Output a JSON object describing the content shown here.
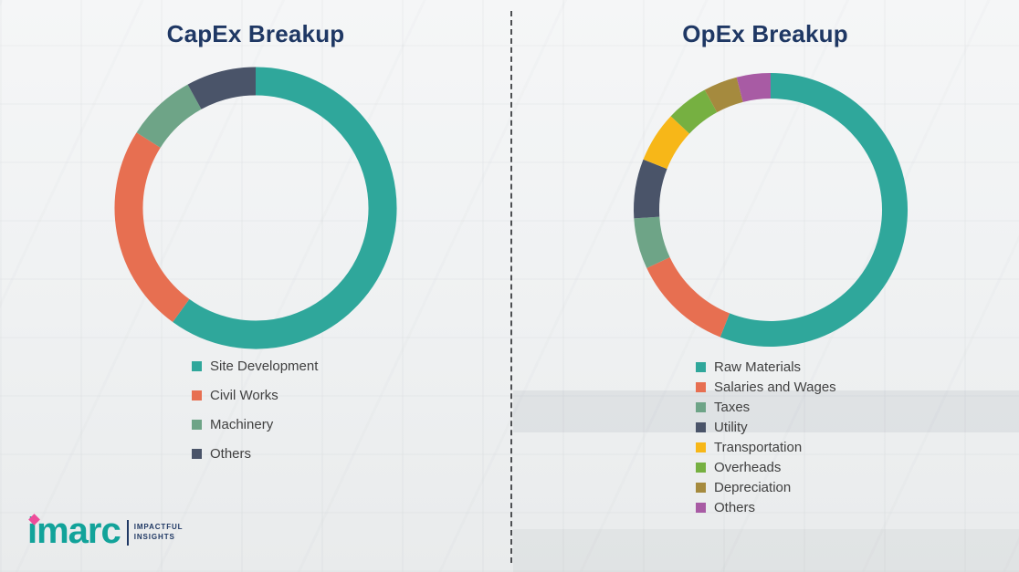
{
  "chart_data": [
    {
      "type": "pie",
      "subtype": "donut",
      "title": "CapEx Breakup",
      "categories": [
        "Site Development",
        "Civil Works",
        "Machinery",
        "Others"
      ],
      "values": [
        60,
        24,
        8,
        8
      ],
      "colors": [
        "#2FA79B",
        "#E76F51",
        "#6EA487",
        "#4A5469"
      ],
      "legend_position": "below-chart-left"
    },
    {
      "type": "pie",
      "subtype": "donut",
      "title": "OpEx Breakup",
      "categories": [
        "Raw Materials",
        "Salaries and Wages",
        "Taxes",
        "Utility",
        "Transportation",
        "Overheads",
        "Depreciation",
        "Others"
      ],
      "values": [
        56,
        12,
        6,
        7,
        6,
        5,
        4,
        4
      ],
      "colors": [
        "#2FA79B",
        "#E76F51",
        "#6EA487",
        "#4A5469",
        "#F7B718",
        "#76B041",
        "#A58A3E",
        "#A85BA4"
      ],
      "legend_position": "below-chart-left"
    }
  ],
  "logo": {
    "brand": "imarc",
    "tagline_line1": "IMPACTFUL",
    "tagline_line2": "INSIGHTS",
    "brand_color": "#12A39A",
    "accent_color": "#ED4C9A",
    "tagline_color": "#1F3864"
  },
  "style": {
    "title_color": "#1F3864",
    "legend_text_color": "#404040",
    "divider_color": "#4d4f52"
  }
}
